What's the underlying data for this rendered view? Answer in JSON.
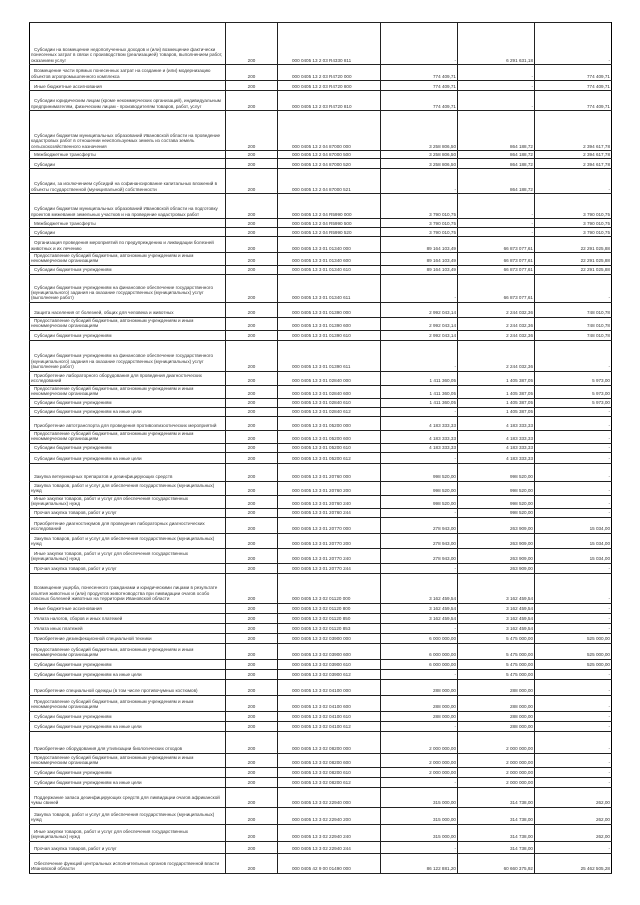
{
  "table": {
    "rows": [
      [
        "Субсидии на возмещение недополученных доходов и (или) возмещение фактически понесенных затрат в связи с производством (реализацией) товаров, выполнением работ, оказанием услуг",
        "200",
        "000 0405 13 2 03 R4330 811",
        "-",
        "6 291 631,18",
        "-"
      ],
      [
        "Возмещение части прямых понесенных затрат на создание и (или) модернизацию объектов агропромышленного комплекса",
        "200",
        "000 0405 13 2 03 R4720 000",
        "774 409,71",
        "-",
        "774 409,71"
      ],
      [
        "Иные бюджетные ассигнования",
        "200",
        "000 0405 13 2 03 R4720 800",
        "774 409,71",
        "-",
        "774 409,71"
      ],
      [
        "Субсидии юридическим лицам (кроме некоммерческих организаций), индивидуальным предпринимателям, физическим лицам - производителям товаров, работ, услуг",
        "200",
        "000 0405 13 2 03 R4720 810",
        "774 409,71",
        "-",
        "774 409,71"
      ],
      [
        "Субсидии бюджетам муниципальных образований Ивановской области на проведение кадастровых работ в отношении неиспользуемых земель из состава земель сельскохозяйственного назначения",
        "200",
        "000 0405 13 2 04 87000 000",
        "3 258 806,50",
        "864 188,72",
        "2 394 617,78"
      ],
      [
        "Межбюджетные трансферты",
        "200",
        "000 0405 13 2 04 87000 500",
        "3 258 806,50",
        "864 188,72",
        "2 394 617,78"
      ],
      [
        "Субсидии",
        "200",
        "000 0405 13 2 04 87000 520",
        "3 258 806,50",
        "864 188,72",
        "2 394 617,78"
      ],
      [
        "Субсидии, за исключением субсидий на софинансирование капитальных вложений в объекты государственной (муниципальной) собственности",
        "200",
        "000 0405 13 2 04 87000 521",
        "-",
        "864 188,72",
        "-"
      ],
      [
        "Субсидии бюджетам муниципальных образований Ивановской области на подготовку проектов межевания земельных участков и на проведение кадастровых работ",
        "200",
        "000 0405 13 2 04 R5990 000",
        "3 790 010,75",
        "-",
        "3 790 010,75"
      ],
      [
        "Межбюджетные трансферты",
        "200",
        "000 0405 13 2 04 R5990 500",
        "3 790 010,75",
        "-",
        "3 790 010,75"
      ],
      [
        "Субсидии",
        "200",
        "000 0405 13 2 04 R5990 520",
        "3 790 010,75",
        "-",
        "3 790 010,75"
      ],
      [
        "Организация проведения мероприятий по предупреждению и ликвидации болезней животных и их лечению",
        "200",
        "000 0405 13 3 01 01340 000",
        "89 164 103,49",
        "66 873 077,61",
        "22 291 025,88"
      ],
      [
        "Предоставление субсидий бюджетным, автономным учреждениям и иным некоммерческим организациям",
        "200",
        "000 0405 13 3 01 01340 600",
        "89 164 103,49",
        "66 873 077,61",
        "22 291 025,88"
      ],
      [
        "Субсидии бюджетным учреждениям",
        "200",
        "000 0405 13 3 01 01340 610",
        "89 164 103,49",
        "66 873 077,61",
        "22 291 025,88"
      ],
      [
        "Субсидии бюджетным учреждениям на финансовое обеспечение государственного (муниципального) задания на оказание государственных (муниципальных) услуг (выполнение работ)",
        "200",
        "000 0405 13 3 01 01340 611",
        "-",
        "66 873 077,61",
        "-"
      ],
      [
        "Защита населения от болезней, общих для человека и животных",
        "200",
        "000 0405 13 3 01 01390 000",
        "2 992 043,14",
        "2 244 032,36",
        "748 010,78"
      ],
      [
        "Предоставление субсидий бюджетным, автономным учреждениям и иным некоммерческим организациям",
        "200",
        "000 0405 13 3 01 01390 600",
        "2 992 043,14",
        "2 244 032,36",
        "748 010,78"
      ],
      [
        "Субсидии бюджетным учреждениям",
        "200",
        "000 0405 13 3 01 01390 610",
        "2 992 043,14",
        "2 244 032,36",
        "748 010,78"
      ],
      [
        "Субсидии бюджетным учреждениям на финансовое обеспечение государственного (муниципального) задания на оказание государственных (муниципальных) услуг (выполнение работ)",
        "200",
        "000 0405 13 3 01 01390 611",
        "-",
        "2 244 032,36",
        "-"
      ],
      [
        "Приобретение лабораторного оборудования для проведения диагностических исследований",
        "200",
        "000 0405 13 3 01 02840 000",
        "1 411 360,05",
        "1 405 387,05",
        "5 973,00"
      ],
      [
        "Предоставление субсидий бюджетным, автономным учреждениям и иным некоммерческим организациям",
        "200",
        "000 0405 13 3 01 02840 600",
        "1 411 360,05",
        "1 405 387,05",
        "5 973,00"
      ],
      [
        "Субсидии бюджетным учреждениям",
        "200",
        "000 0405 13 3 01 02840 610",
        "1 411 360,05",
        "1 405 387,05",
        "5 973,00"
      ],
      [
        "Субсидии бюджетным учреждениям на иные цели",
        "200",
        "000 0405 13 3 01 02840 612",
        "-",
        "1 405 387,05",
        "-"
      ],
      [
        "Приобретение автотранспорта для проведения противоэпизоотических мероприятий",
        "200",
        "000 0405 13 3 01 05200 000",
        "4 183 333,33",
        "4 183 333,33",
        "-"
      ],
      [
        "Предоставление субсидий бюджетным, автономным учреждениям и иным некоммерческим организациям",
        "200",
        "000 0405 13 3 01 05200 600",
        "4 183 333,33",
        "4 183 333,33",
        "-"
      ],
      [
        "Субсидии бюджетным учреждениям",
        "200",
        "000 0405 13 3 01 05200 610",
        "4 183 333,33",
        "4 183 333,33",
        "-"
      ],
      [
        "Субсидии бюджетным учреждениям на иные цели",
        "200",
        "000 0405 13 3 01 05200 612",
        "-",
        "4 183 333,33",
        "-"
      ],
      [
        "Закупка ветеринарных препаратов и дезинфицирующих средств",
        "200",
        "000 0405 13 3 01 20760 000",
        "998 520,00",
        "998 520,00",
        "-"
      ],
      [
        "Закупка товаров, работ и услуг для обеспечения государственных (муниципальных) нужд",
        "200",
        "000 0405 13 3 01 20760 200",
        "998 520,00",
        "998 520,00",
        "-"
      ],
      [
        "Иные закупки товаров, работ и услуг для обеспечения государственных (муниципальных) нужд",
        "200",
        "000 0405 13 3 01 20760 240",
        "998 520,00",
        "998 520,00",
        "-"
      ],
      [
        "Прочая закупка товаров, работ и услуг",
        "200",
        "000 0405 13 3 01 20760 244",
        "-",
        "998 520,00",
        "-"
      ],
      [
        "Приобретение диагностикумов для проведения лабораторных диагностических исследований",
        "200",
        "000 0405 13 3 01 20770 000",
        "278 943,00",
        "263 909,00",
        "15 034,00"
      ],
      [
        "Закупка товаров, работ и услуг для обеспечения государственных (муниципальных) нужд",
        "200",
        "000 0405 13 3 01 20770 200",
        "278 943,00",
        "263 909,00",
        "15 034,00"
      ],
      [
        "Иные закупки товаров, работ и услуг для обеспечения государственных (муниципальных) нужд",
        "200",
        "000 0405 13 3 01 20770 240",
        "278 943,00",
        "263 909,00",
        "15 034,00"
      ],
      [
        "Прочая закупка товаров, работ и услуг",
        "200",
        "000 0405 13 3 01 20770 244",
        "-",
        "263 909,00",
        "-"
      ],
      [
        "Возмещение ущерба, понесенного гражданами и юридическими лицами в результате изъятия животных и (или) продуктов животноводства при ликвидации очагов особо опасных болезней животных на территории Ивановской области",
        "200",
        "000 0405 13 3 02 01120 000",
        "3 162 459,54",
        "3 162 459,54",
        "-"
      ],
      [
        "Иные бюджетные ассигнования",
        "200",
        "000 0405 13 3 02 01120 800",
        "3 162 459,54",
        "3 162 459,54",
        "-"
      ],
      [
        "Уплата налогов, сборов и иных платежей",
        "200",
        "000 0405 13 3 02 01120 850",
        "3 162 459,54",
        "3 162 459,54",
        "-"
      ],
      [
        "Уплата иных платежей",
        "200",
        "000 0405 13 3 02 01120 853",
        "-",
        "3 162 459,54",
        "-"
      ],
      [
        "Приобретение дезинфекционной специальной техники",
        "200",
        "000 0405 13 3 02 03900 000",
        "6 000 000,00",
        "5 475 000,00",
        "525 000,00"
      ],
      [
        "Предоставление субсидий бюджетным, автономным учреждениям и иным некоммерческим организациям",
        "200",
        "000 0405 13 3 02 03900 600",
        "6 000 000,00",
        "5 475 000,00",
        "525 000,00"
      ],
      [
        "Субсидии бюджетным учреждениям",
        "200",
        "000 0405 13 3 02 03900 610",
        "6 000 000,00",
        "5 475 000,00",
        "525 000,00"
      ],
      [
        "Субсидии бюджетным учреждениям на иные цели",
        "200",
        "000 0405 13 3 02 03900 612",
        "-",
        "5 475 000,00",
        "-"
      ],
      [
        "Приобретение специальной одежды (в том числе противочумных костюмов)",
        "200",
        "000 0405 13 3 02 04100 000",
        "288 000,00",
        "288 000,00",
        "-"
      ],
      [
        "Предоставление субсидий бюджетным, автономным учреждениям и иным некоммерческим организациям",
        "200",
        "000 0405 13 3 02 04100 600",
        "288 000,00",
        "288 000,00",
        "-"
      ],
      [
        "Субсидии бюджетным учреждениям",
        "200",
        "000 0405 13 3 02 04100 610",
        "288 000,00",
        "288 000,00",
        "-"
      ],
      [
        "Субсидии бюджетным учреждениям на иные цели",
        "200",
        "000 0405 13 3 02 04100 612",
        "-",
        "288 000,00",
        "-"
      ],
      [
        "Приобретение оборудования для утилизации биологических отходов",
        "200",
        "000 0405 13 3 02 08200 000",
        "2 000 000,00",
        "2 000 000,00",
        "-"
      ],
      [
        "Предоставление субсидий бюджетным, автономным учреждениям и иным некоммерческим организациям",
        "200",
        "000 0405 13 3 02 08200 600",
        "2 000 000,00",
        "2 000 000,00",
        "-"
      ],
      [
        "Субсидии бюджетным учреждениям",
        "200",
        "000 0405 13 3 02 08200 610",
        "2 000 000,00",
        "2 000 000,00",
        "-"
      ],
      [
        "Субсидии бюджетным учреждениям на иные цели",
        "200",
        "000 0405 13 3 02 08200 612",
        "-",
        "2 000 000,00",
        "-"
      ],
      [
        "Поддержание запаса дезинфицирующих средств для ликвидации очагов африканской чумы свиней",
        "200",
        "000 0405 13 3 02 22940 000",
        "315 000,00",
        "314 738,00",
        "262,00"
      ],
      [
        "Закупка товаров, работ и услуг для обеспечения государственных (муниципальных) нужд",
        "200",
        "000 0405 13 3 02 22940 200",
        "315 000,00",
        "314 738,00",
        "262,00"
      ],
      [
        "Иные закупки товаров, работ и услуг для обеспечения государственных (муниципальных) нужд",
        "200",
        "000 0405 13 3 02 22940 240",
        "315 000,00",
        "314 738,00",
        "262,00"
      ],
      [
        "Прочая закупка товаров, работ и услуг",
        "200",
        "000 0405 13 3 02 22940 244",
        "-",
        "314 738,00",
        "-"
      ],
      [
        "Обеспечение функций центральных исполнительных органов государственной власти Ивановской области",
        "200",
        "000 0405 42 9 00 01490 000",
        "86 122 881,20",
        "60 660 375,92",
        "25 462 505,28"
      ]
    ]
  }
}
